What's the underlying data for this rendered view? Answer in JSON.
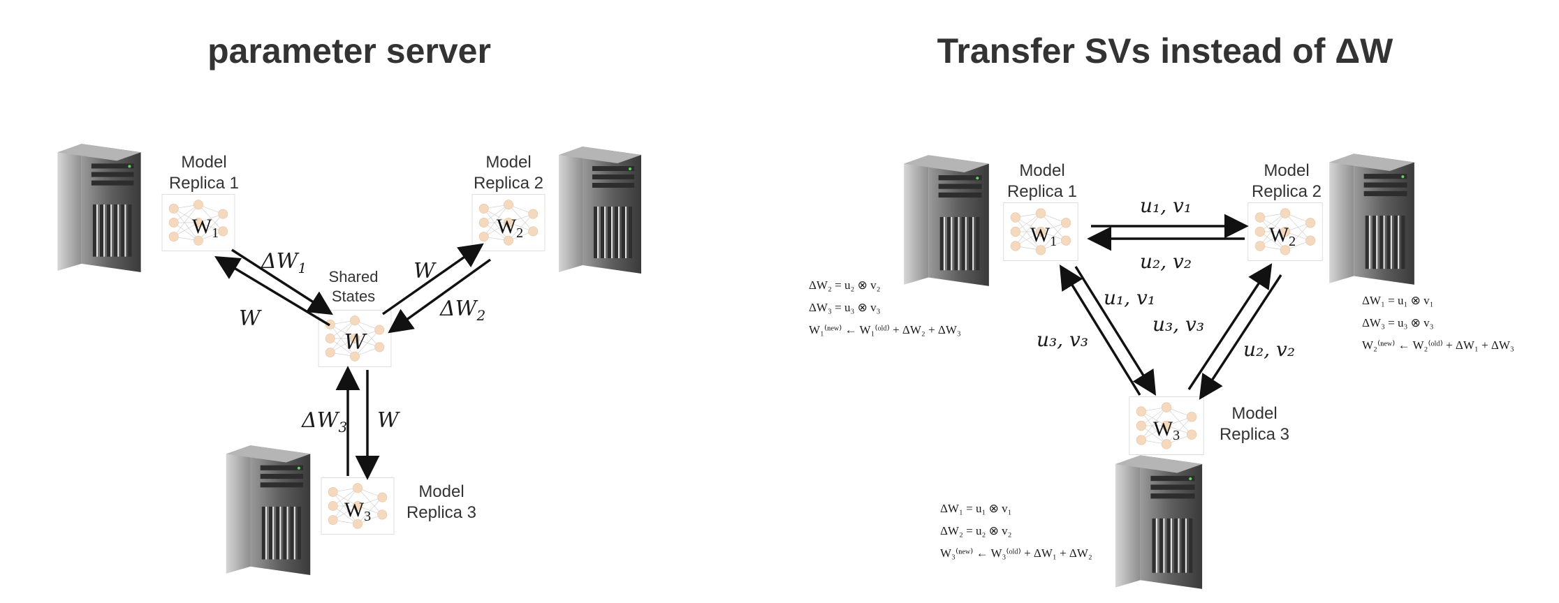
{
  "left": {
    "title": "parameter server",
    "replica1": {
      "line1": "Model",
      "line2": "Replica 1",
      "weight": "W",
      "sub": "1"
    },
    "replica2": {
      "line1": "Model",
      "line2": "Replica 2",
      "weight": "W",
      "sub": "2"
    },
    "replica3": {
      "line1": "Model",
      "line2": "Replica 3",
      "weight": "W",
      "sub": "3"
    },
    "shared": {
      "line1": "Shared",
      "line2": "States",
      "weight": "W"
    },
    "arrows": {
      "dw1": {
        "base": "ΔW",
        "sub": "1"
      },
      "w_to1": {
        "base": "W"
      },
      "w_to2": {
        "base": "W"
      },
      "dw2": {
        "base": "ΔW",
        "sub": "2"
      },
      "dw3": {
        "base": "ΔW",
        "sub": "3"
      },
      "w_to3": {
        "base": "W"
      }
    }
  },
  "right": {
    "title": "Transfer SVs instead of ΔW",
    "replica1": {
      "line1": "Model",
      "line2": "Replica 1",
      "weight": "W",
      "sub": "1"
    },
    "replica2": {
      "line1": "Model",
      "line2": "Replica 2",
      "weight": "W",
      "sub": "2"
    },
    "replica3": {
      "line1": "Model",
      "line2": "Replica 3",
      "weight": "W",
      "sub": "3"
    },
    "arrows": {
      "top": "u₁, v₁",
      "bottom": "u₂, v₂",
      "mid_left": "u₁, v₁",
      "outer_left": "u₃, v₃",
      "mid_right": "u₃, v₃",
      "outer_right": "u₂, v₂"
    },
    "eqs_replica1": [
      "ΔW₂ = u₂ ⊗ v₂",
      "ΔW₃ = u₃ ⊗ v₃",
      "W₁⁽ⁿᵉʷ⁾ ← W₁⁽ᵒˡᵈ⁾ + ΔW₂ + ΔW₃"
    ],
    "eqs_replica2": [
      "ΔW₁ = u₁ ⊗ v₁",
      "ΔW₃ = u₃ ⊗ v₃",
      "W₂⁽ⁿᵉʷ⁾ ← W₂⁽ᵒˡᵈ⁾ + ΔW₁ + ΔW₃"
    ],
    "eqs_replica3": [
      "ΔW₁ = u₁ ⊗ v₁",
      "ΔW₂ = u₂ ⊗ v₂",
      "W₃⁽ⁿᵉʷ⁾ ← W₃⁽ᵒˡᵈ⁾ + ΔW₁ + ΔW₂"
    ]
  },
  "colors": {
    "server_dark": "#3a3a3a",
    "server_mid": "#7a7a7a",
    "server_light": "#c4c4c4",
    "node": "#f4d9bf",
    "arrow": "#111111"
  }
}
